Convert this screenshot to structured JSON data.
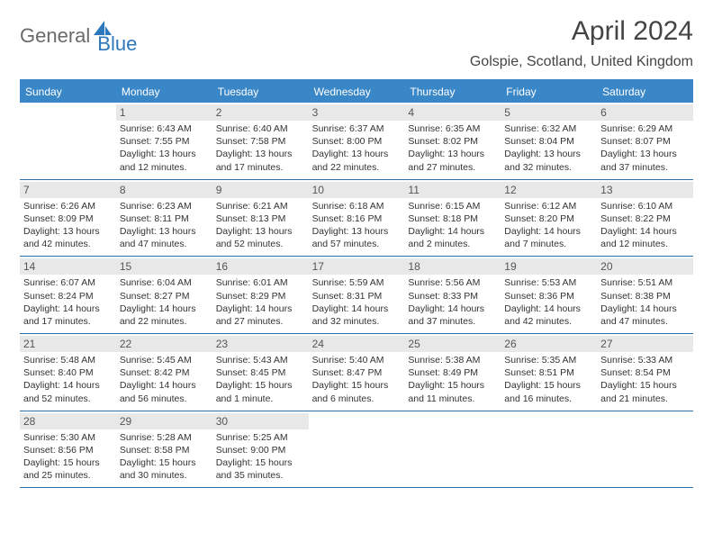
{
  "logo": {
    "general": "General",
    "blue": "Blue"
  },
  "header": {
    "month_title": "April 2024",
    "location": "Golspie, Scotland, United Kingdom"
  },
  "colors": {
    "accent": "#3a87c8",
    "header_text": "#ffffff",
    "daynum_bg": "#e8e8e8",
    "text": "#333333"
  },
  "weekdays": [
    "Sunday",
    "Monday",
    "Tuesday",
    "Wednesday",
    "Thursday",
    "Friday",
    "Saturday"
  ],
  "weeks": [
    [
      null,
      {
        "n": "1",
        "sr": "Sunrise: 6:43 AM",
        "ss": "Sunset: 7:55 PM",
        "d1": "Daylight: 13 hours",
        "d2": "and 12 minutes."
      },
      {
        "n": "2",
        "sr": "Sunrise: 6:40 AM",
        "ss": "Sunset: 7:58 PM",
        "d1": "Daylight: 13 hours",
        "d2": "and 17 minutes."
      },
      {
        "n": "3",
        "sr": "Sunrise: 6:37 AM",
        "ss": "Sunset: 8:00 PM",
        "d1": "Daylight: 13 hours",
        "d2": "and 22 minutes."
      },
      {
        "n": "4",
        "sr": "Sunrise: 6:35 AM",
        "ss": "Sunset: 8:02 PM",
        "d1": "Daylight: 13 hours",
        "d2": "and 27 minutes."
      },
      {
        "n": "5",
        "sr": "Sunrise: 6:32 AM",
        "ss": "Sunset: 8:04 PM",
        "d1": "Daylight: 13 hours",
        "d2": "and 32 minutes."
      },
      {
        "n": "6",
        "sr": "Sunrise: 6:29 AM",
        "ss": "Sunset: 8:07 PM",
        "d1": "Daylight: 13 hours",
        "d2": "and 37 minutes."
      }
    ],
    [
      {
        "n": "7",
        "sr": "Sunrise: 6:26 AM",
        "ss": "Sunset: 8:09 PM",
        "d1": "Daylight: 13 hours",
        "d2": "and 42 minutes."
      },
      {
        "n": "8",
        "sr": "Sunrise: 6:23 AM",
        "ss": "Sunset: 8:11 PM",
        "d1": "Daylight: 13 hours",
        "d2": "and 47 minutes."
      },
      {
        "n": "9",
        "sr": "Sunrise: 6:21 AM",
        "ss": "Sunset: 8:13 PM",
        "d1": "Daylight: 13 hours",
        "d2": "and 52 minutes."
      },
      {
        "n": "10",
        "sr": "Sunrise: 6:18 AM",
        "ss": "Sunset: 8:16 PM",
        "d1": "Daylight: 13 hours",
        "d2": "and 57 minutes."
      },
      {
        "n": "11",
        "sr": "Sunrise: 6:15 AM",
        "ss": "Sunset: 8:18 PM",
        "d1": "Daylight: 14 hours",
        "d2": "and 2 minutes."
      },
      {
        "n": "12",
        "sr": "Sunrise: 6:12 AM",
        "ss": "Sunset: 8:20 PM",
        "d1": "Daylight: 14 hours",
        "d2": "and 7 minutes."
      },
      {
        "n": "13",
        "sr": "Sunrise: 6:10 AM",
        "ss": "Sunset: 8:22 PM",
        "d1": "Daylight: 14 hours",
        "d2": "and 12 minutes."
      }
    ],
    [
      {
        "n": "14",
        "sr": "Sunrise: 6:07 AM",
        "ss": "Sunset: 8:24 PM",
        "d1": "Daylight: 14 hours",
        "d2": "and 17 minutes."
      },
      {
        "n": "15",
        "sr": "Sunrise: 6:04 AM",
        "ss": "Sunset: 8:27 PM",
        "d1": "Daylight: 14 hours",
        "d2": "and 22 minutes."
      },
      {
        "n": "16",
        "sr": "Sunrise: 6:01 AM",
        "ss": "Sunset: 8:29 PM",
        "d1": "Daylight: 14 hours",
        "d2": "and 27 minutes."
      },
      {
        "n": "17",
        "sr": "Sunrise: 5:59 AM",
        "ss": "Sunset: 8:31 PM",
        "d1": "Daylight: 14 hours",
        "d2": "and 32 minutes."
      },
      {
        "n": "18",
        "sr": "Sunrise: 5:56 AM",
        "ss": "Sunset: 8:33 PM",
        "d1": "Daylight: 14 hours",
        "d2": "and 37 minutes."
      },
      {
        "n": "19",
        "sr": "Sunrise: 5:53 AM",
        "ss": "Sunset: 8:36 PM",
        "d1": "Daylight: 14 hours",
        "d2": "and 42 minutes."
      },
      {
        "n": "20",
        "sr": "Sunrise: 5:51 AM",
        "ss": "Sunset: 8:38 PM",
        "d1": "Daylight: 14 hours",
        "d2": "and 47 minutes."
      }
    ],
    [
      {
        "n": "21",
        "sr": "Sunrise: 5:48 AM",
        "ss": "Sunset: 8:40 PM",
        "d1": "Daylight: 14 hours",
        "d2": "and 52 minutes."
      },
      {
        "n": "22",
        "sr": "Sunrise: 5:45 AM",
        "ss": "Sunset: 8:42 PM",
        "d1": "Daylight: 14 hours",
        "d2": "and 56 minutes."
      },
      {
        "n": "23",
        "sr": "Sunrise: 5:43 AM",
        "ss": "Sunset: 8:45 PM",
        "d1": "Daylight: 15 hours",
        "d2": "and 1 minute."
      },
      {
        "n": "24",
        "sr": "Sunrise: 5:40 AM",
        "ss": "Sunset: 8:47 PM",
        "d1": "Daylight: 15 hours",
        "d2": "and 6 minutes."
      },
      {
        "n": "25",
        "sr": "Sunrise: 5:38 AM",
        "ss": "Sunset: 8:49 PM",
        "d1": "Daylight: 15 hours",
        "d2": "and 11 minutes."
      },
      {
        "n": "26",
        "sr": "Sunrise: 5:35 AM",
        "ss": "Sunset: 8:51 PM",
        "d1": "Daylight: 15 hours",
        "d2": "and 16 minutes."
      },
      {
        "n": "27",
        "sr": "Sunrise: 5:33 AM",
        "ss": "Sunset: 8:54 PM",
        "d1": "Daylight: 15 hours",
        "d2": "and 21 minutes."
      }
    ],
    [
      {
        "n": "28",
        "sr": "Sunrise: 5:30 AM",
        "ss": "Sunset: 8:56 PM",
        "d1": "Daylight: 15 hours",
        "d2": "and 25 minutes."
      },
      {
        "n": "29",
        "sr": "Sunrise: 5:28 AM",
        "ss": "Sunset: 8:58 PM",
        "d1": "Daylight: 15 hours",
        "d2": "and 30 minutes."
      },
      {
        "n": "30",
        "sr": "Sunrise: 5:25 AM",
        "ss": "Sunset: 9:00 PM",
        "d1": "Daylight: 15 hours",
        "d2": "and 35 minutes."
      },
      null,
      null,
      null,
      null
    ]
  ]
}
